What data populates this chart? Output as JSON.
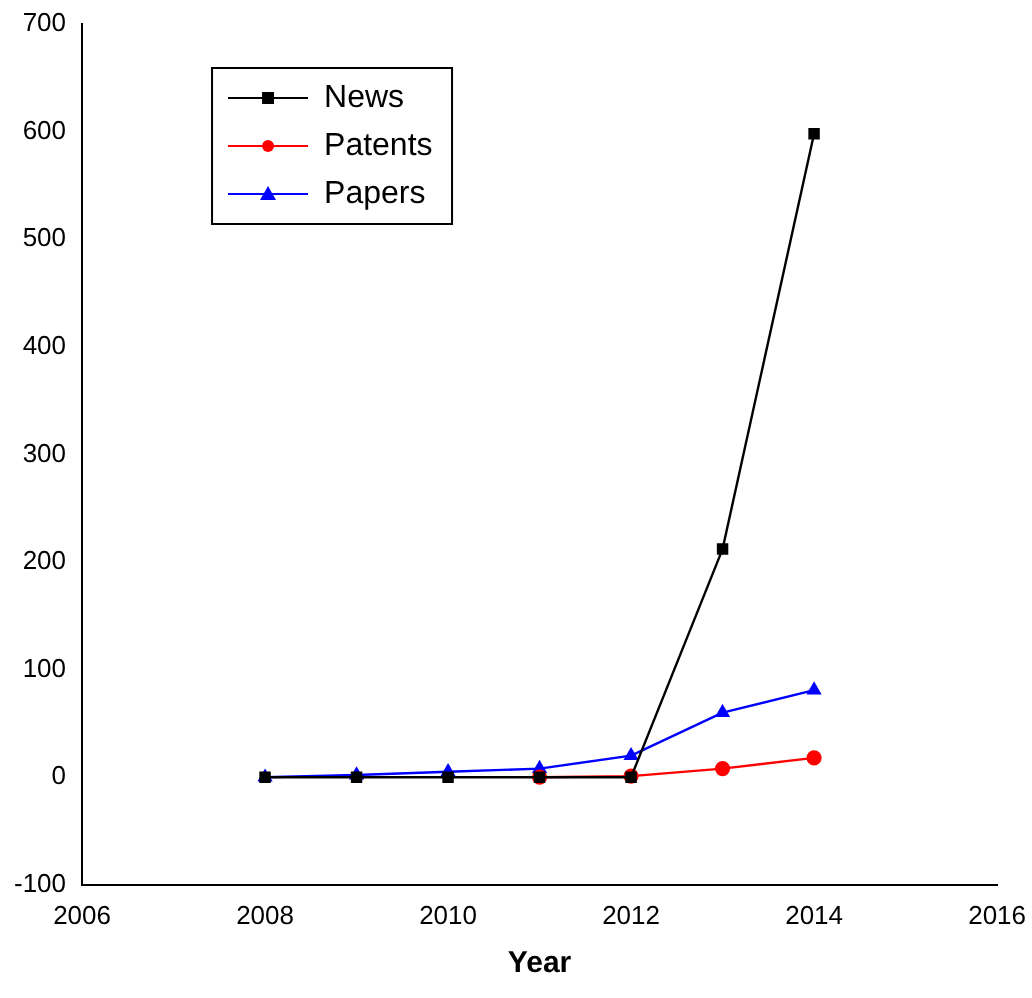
{
  "chart_data": {
    "type": "line",
    "xlabel": "Year",
    "xlim": [
      2006,
      2016
    ],
    "xticks": [
      2006,
      2008,
      2010,
      2012,
      2014,
      2016
    ],
    "ylim": [
      -100,
      700
    ],
    "yticks": [
      -100,
      0,
      100,
      200,
      300,
      400,
      500,
      600,
      700
    ],
    "grid": false,
    "legend": "top left",
    "line_style": "solid",
    "series": [
      {
        "name": "News",
        "color": "#000000",
        "marker": "square",
        "x": [
          2008,
          2009,
          2010,
          2011,
          2012,
          2013,
          2014
        ],
        "values": [
          0,
          0,
          0,
          0,
          0,
          212,
          598
        ]
      },
      {
        "name": "Patents",
        "color": "#ff0000",
        "marker": "circle",
        "x": [
          2011,
          2012,
          2013,
          2014
        ],
        "values": [
          0,
          1,
          8,
          18
        ]
      },
      {
        "name": "Papers",
        "color": "#0000ff",
        "marker": "triangle",
        "x": [
          2008,
          2009,
          2010,
          2011,
          2012,
          2013,
          2014
        ],
        "values": [
          0,
          2,
          5,
          8,
          20,
          60,
          81
        ]
      }
    ]
  }
}
